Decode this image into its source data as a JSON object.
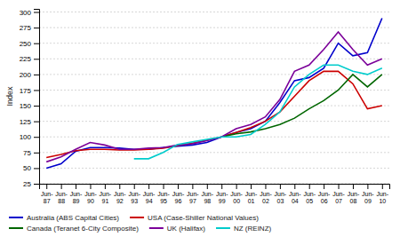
{
  "chart_data": {
    "type": "line",
    "ylabel": "Index",
    "categories": [
      "Jun-\n87",
      "Jun-\n88",
      "Jun-\n89",
      "Jun-\n90",
      "Jun-\n91",
      "Jun-\n92",
      "Jun-\n93",
      "Jun-\n94",
      "Jun-\n95",
      "Jun-\n96",
      "Jun-\n97",
      "Jun-\n98",
      "Jun-\n99",
      "Jun-\n00",
      "Jun-\n01",
      "Jun-\n02",
      "Jun-\n03",
      "Jun-\n04",
      "Jun-\n05",
      "Jun-\n06",
      "Jun-\n07",
      "Jun-\n08",
      "Jun-\n09",
      "Jun-\n10"
    ],
    "series": [
      {
        "name": "Australia (ABS Capital Cities)",
        "color": "#0000CC",
        "values": [
          50,
          57,
          77,
          83,
          83,
          82,
          80,
          80,
          83,
          85,
          87,
          91,
          100,
          107,
          113,
          125,
          155,
          190,
          195,
          210,
          250,
          230,
          235,
          290
        ]
      },
      {
        "name": "USA (Case-Shiller National Values)",
        "color": "#CC0000",
        "values": [
          67,
          72,
          78,
          80,
          80,
          79,
          79,
          80,
          82,
          86,
          90,
          95,
          100,
          107,
          115,
          125,
          140,
          165,
          190,
          205,
          205,
          185,
          145,
          150
        ]
      },
      {
        "name": "Canada (Teranet 6-City Composite)",
        "color": "#006600",
        "values": [
          null,
          null,
          null,
          null,
          null,
          null,
          null,
          null,
          null,
          null,
          null,
          null,
          100,
          105,
          108,
          113,
          120,
          130,
          145,
          158,
          175,
          200,
          180,
          200
        ]
      },
      {
        "name": "UK (Halifax)",
        "color": "#7B0099",
        "values": [
          60,
          68,
          80,
          91,
          87,
          80,
          80,
          82,
          83,
          87,
          89,
          94,
          100,
          113,
          120,
          132,
          160,
          205,
          215,
          240,
          268,
          240,
          215,
          225
        ]
      },
      {
        "name": "NZ (REINZ)",
        "color": "#00CCCC",
        "values": [
          null,
          null,
          null,
          null,
          null,
          null,
          65,
          65,
          75,
          88,
          92,
          96,
          100,
          100,
          104,
          120,
          140,
          180,
          200,
          215,
          215,
          205,
          200,
          210
        ]
      }
    ],
    "ylim": [
      25,
      305
    ],
    "yticks": [
      25,
      50,
      75,
      100,
      125,
      150,
      175,
      200,
      225,
      250,
      275,
      300
    ],
    "grid": true,
    "legend": "bottom"
  }
}
